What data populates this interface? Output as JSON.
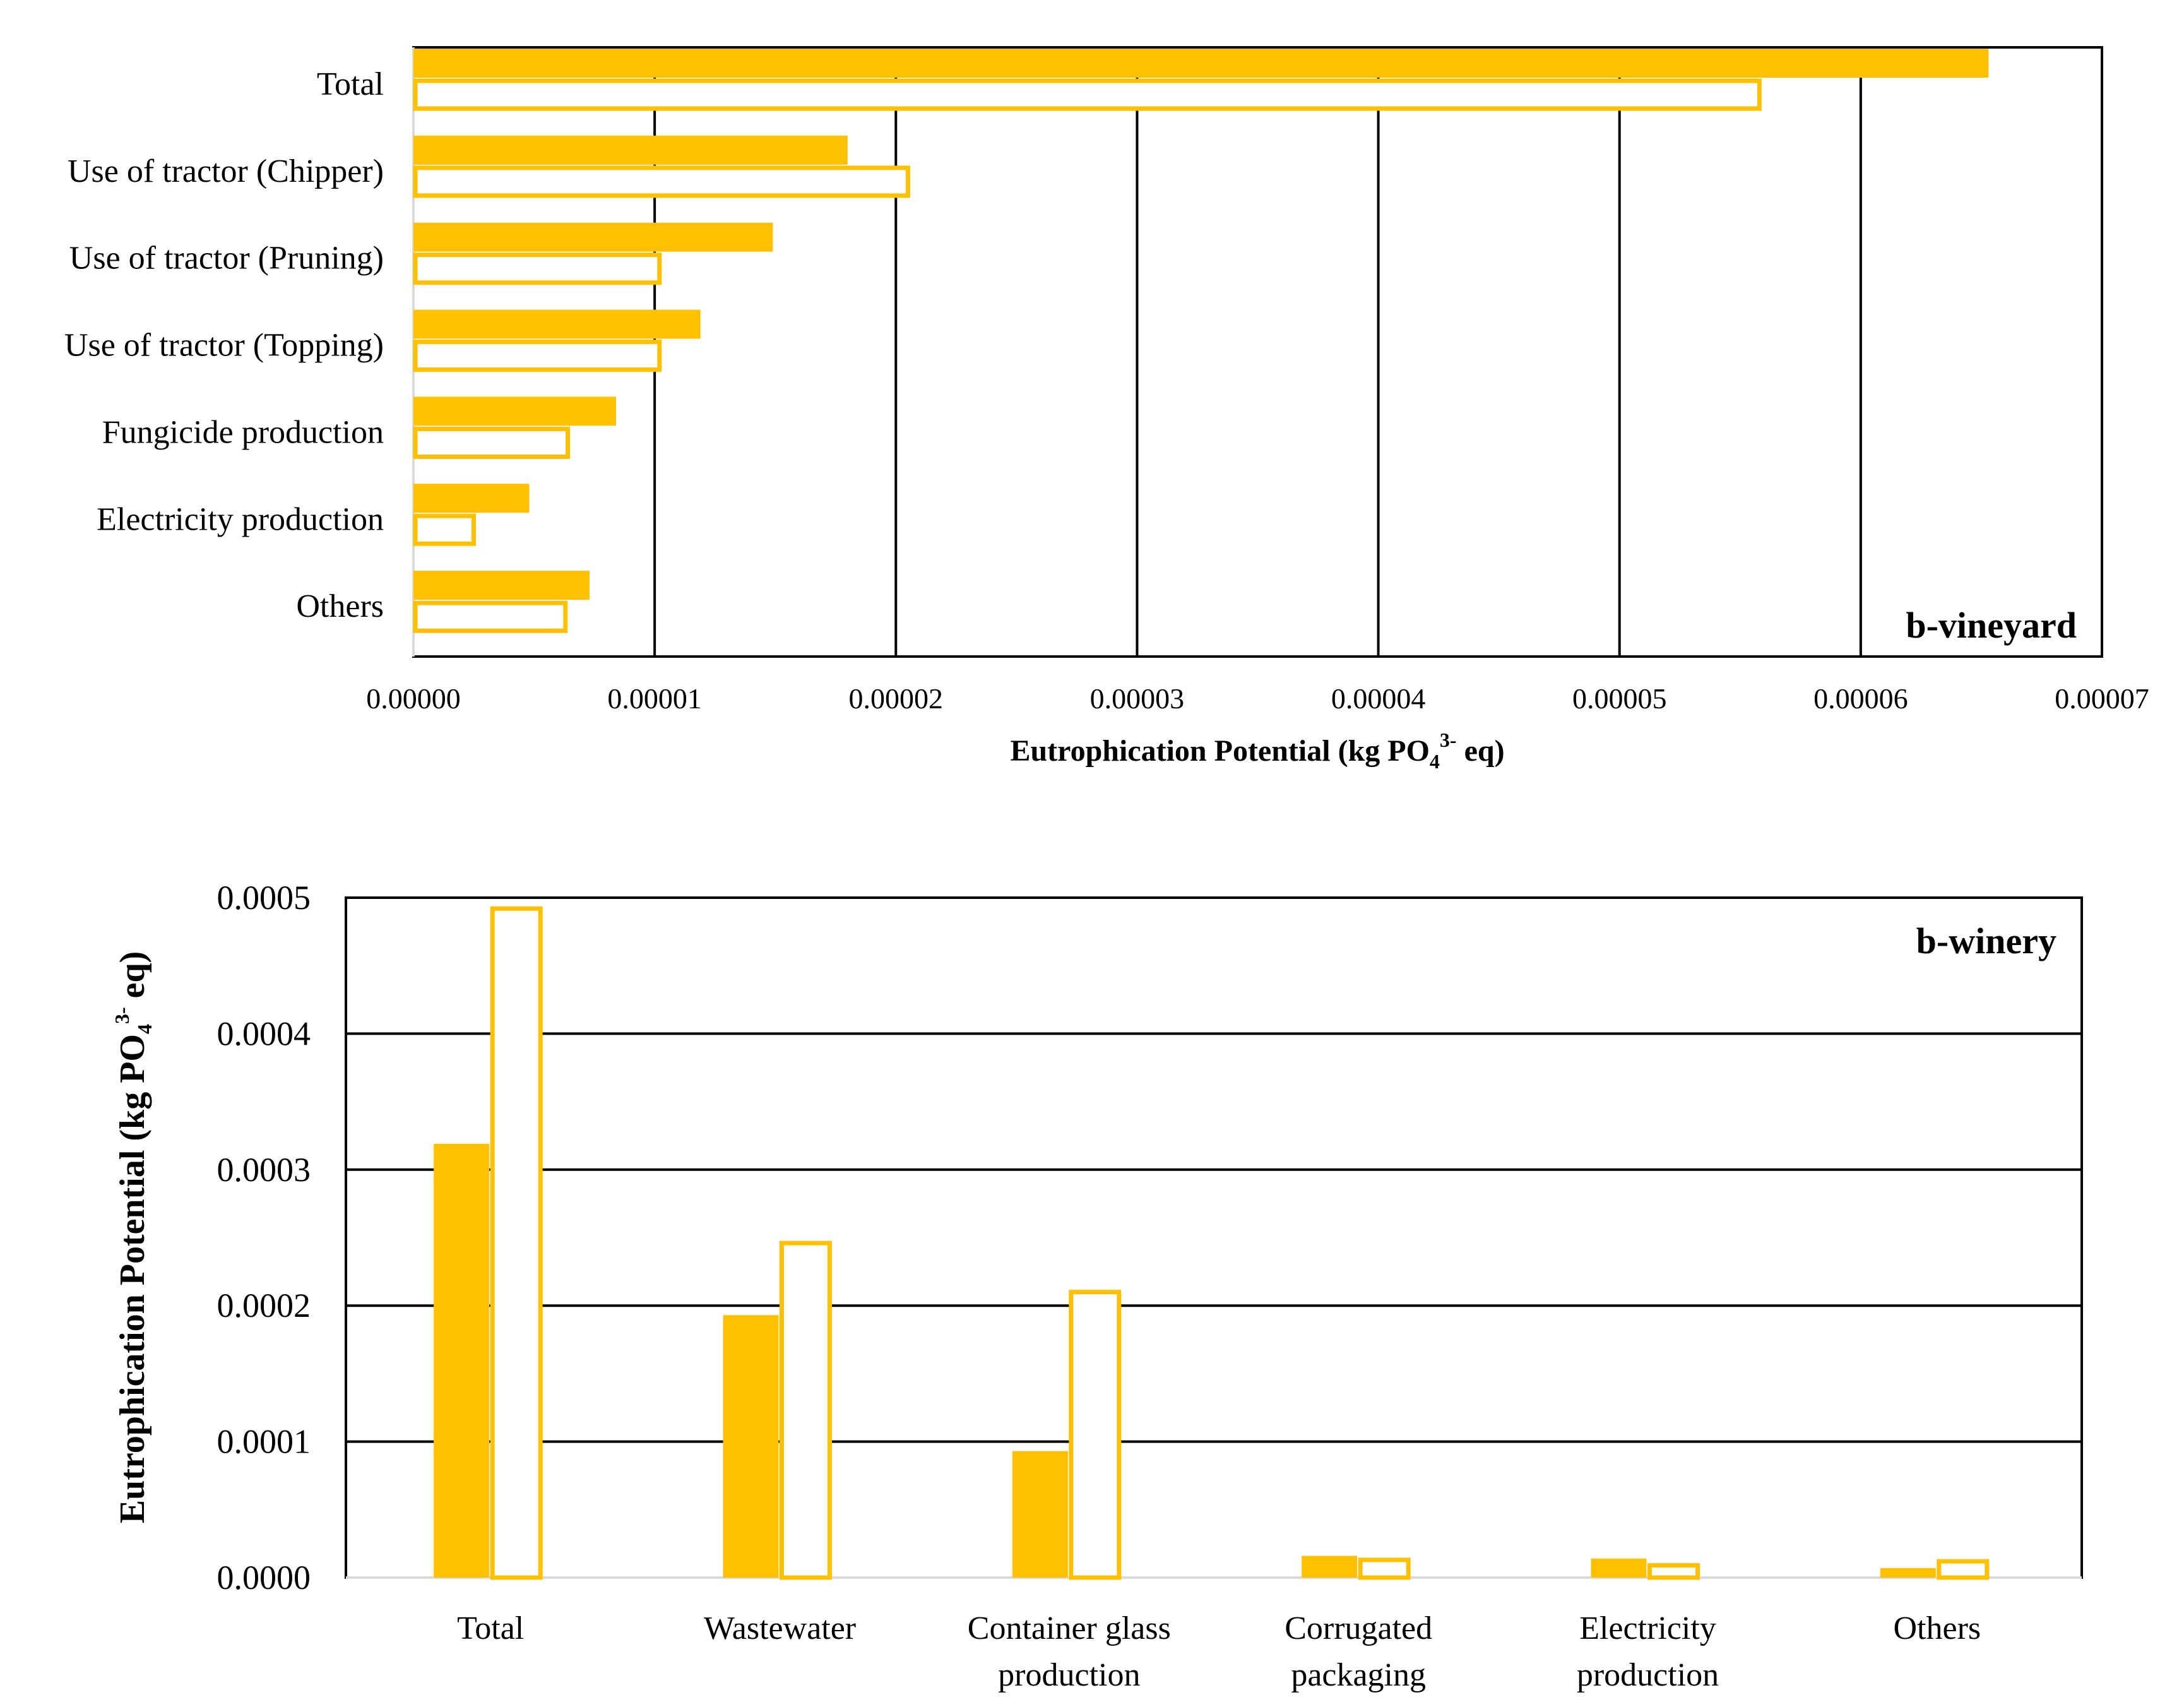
{
  "colors": {
    "accent": "#FFC000",
    "grid": "#000000",
    "frame": "#000000"
  },
  "chart_data": [
    {
      "type": "bar",
      "orientation": "horizontal",
      "panel_label": "b-vineyard",
      "categories": [
        "Total",
        "Use of tractor (Chipper)",
        "Use of tractor (Pruning)",
        "Use of tractor (Topping)",
        "Fungicide production",
        "Electricity production",
        "Others"
      ],
      "series": [
        {
          "name": "filled",
          "style": "filled",
          "values": [
            6.53e-05,
            1.8e-05,
            1.49e-05,
            1.19e-05,
            8.4e-06,
            4.8e-06,
            7.3e-06
          ]
        },
        {
          "name": "outline",
          "style": "outline",
          "values": [
            5.58e-05,
            2.05e-05,
            1.02e-05,
            1.02e-05,
            6.4e-06,
            2.5e-06,
            6.3e-06
          ]
        }
      ],
      "xlim": [
        0,
        7e-05
      ],
      "ticks": [
        0,
        1e-05,
        2e-05,
        3e-05,
        4e-05,
        5e-05,
        6e-05,
        7e-05
      ],
      "tick_labels": [
        "0.00000",
        "0.00001",
        "0.00002",
        "0.00003",
        "0.00004",
        "0.00005",
        "0.00006",
        "0.00007"
      ],
      "xlabel": {
        "main": "Eutrophication  Potential  (kg PO",
        "sub": "4",
        "sup": "3-",
        "tail": " eq)"
      },
      "grid": "vertical"
    },
    {
      "type": "bar",
      "orientation": "vertical",
      "panel_label": "b-winery",
      "categories": [
        [
          "Total"
        ],
        [
          "Wastewater"
        ],
        [
          "Container glass",
          "production"
        ],
        [
          "Corrugated",
          "packaging"
        ],
        [
          "Electricity",
          "production"
        ],
        [
          "Others"
        ]
      ],
      "series": [
        {
          "name": "filled",
          "style": "filled",
          "values": [
            0.000319,
            0.000193,
            9.3e-05,
            1.6e-05,
            1.4e-05,
            7e-06
          ]
        },
        {
          "name": "outline",
          "style": "outline",
          "values": [
            0.000492,
            0.000246,
            0.00021,
            1.3e-05,
            9e-06,
            1.2e-05
          ]
        }
      ],
      "ylim": [
        0,
        0.0005
      ],
      "ticks": [
        0,
        0.0001,
        0.0002,
        0.0003,
        0.0004,
        0.0005
      ],
      "tick_labels": [
        "0.0000",
        "0.0001",
        "0.0002",
        "0.0003",
        "0.0004",
        "0.0005"
      ],
      "ylabel": {
        "main": "Eutrophication  Potential  (kg PO",
        "sub": "4",
        "sup": "3-",
        "tail": " eq)"
      },
      "grid": "horizontal"
    }
  ]
}
